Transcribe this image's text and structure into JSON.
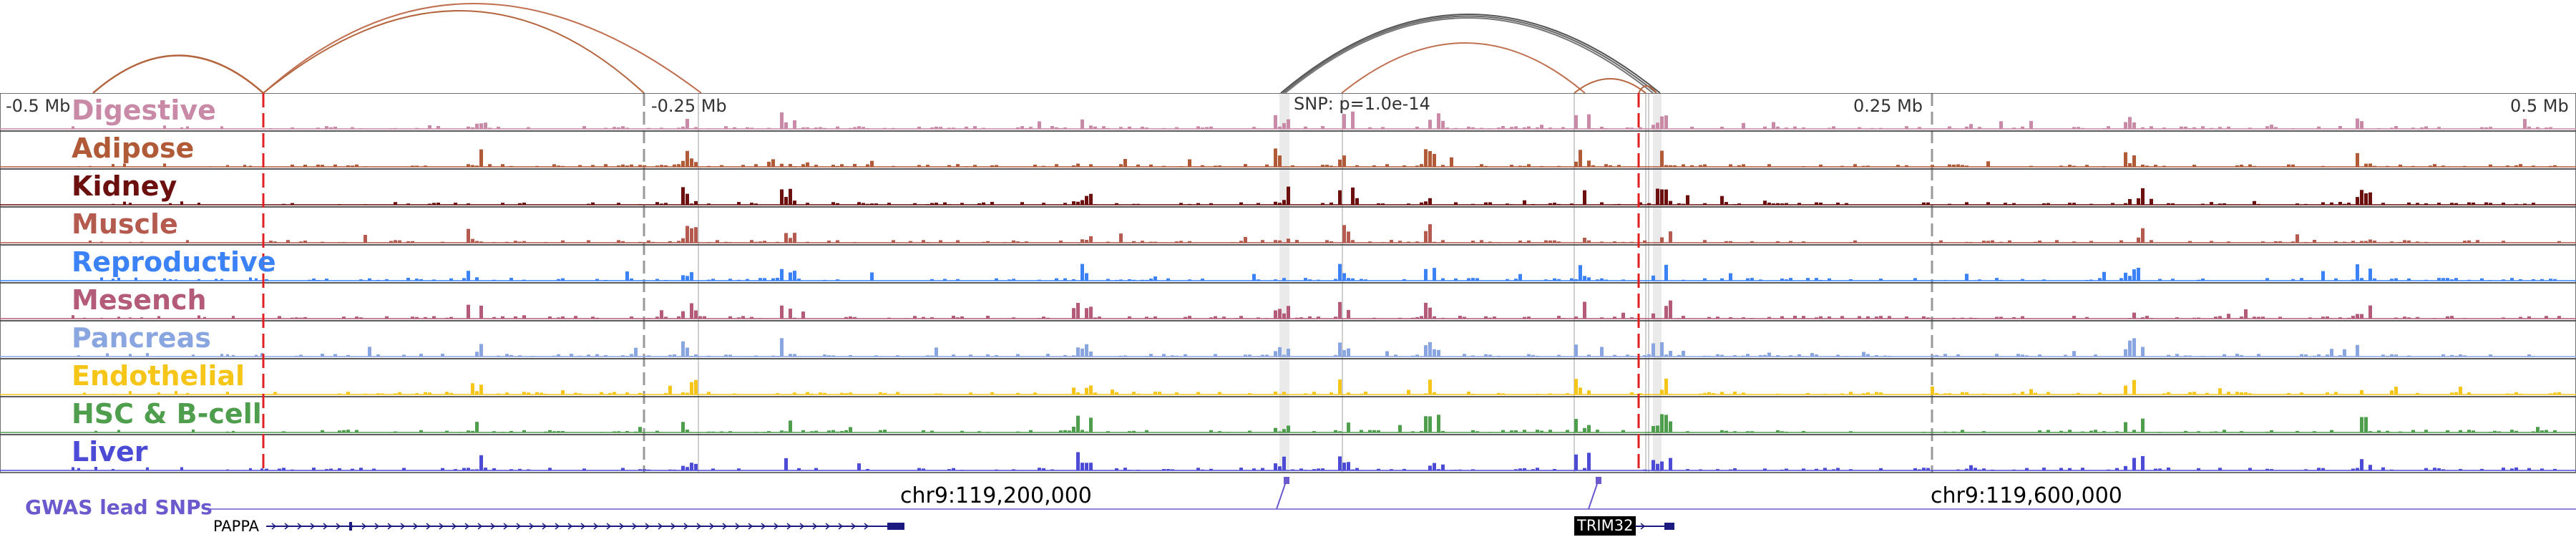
{
  "axis": {
    "left": "-0.5 Mb",
    "left_mid": "-0.25 Mb",
    "snp": "SNP: p=1.0e-14",
    "right_mid": "0.25 Mb",
    "right": "0.5 Mb"
  },
  "coordinates": {
    "left": "chr9:119,200,000",
    "right": "chr9:119,600,000"
  },
  "gwas_label": "GWAS lead SNPs",
  "genes": [
    {
      "name": "PAPPA"
    },
    {
      "name": "TRIM32"
    }
  ],
  "tracks": [
    {
      "name": "Digestive",
      "color": "#c98aa7"
    },
    {
      "name": "Adipose",
      "color": "#b05a38"
    },
    {
      "name": "Kidney",
      "color": "#6b0f0f"
    },
    {
      "name": "Muscle",
      "color": "#b45a4e"
    },
    {
      "name": "Reproductive",
      "color": "#3b82f6"
    },
    {
      "name": "Mesench",
      "color": "#b35b78"
    },
    {
      "name": "Pancreas",
      "color": "#8aa6e0"
    },
    {
      "name": "Endothelial",
      "color": "#f5c518"
    },
    {
      "name": "HSC & B-cell",
      "color": "#4e9e4e"
    },
    {
      "name": "Liver",
      "color": "#4b4bd6"
    }
  ]
}
